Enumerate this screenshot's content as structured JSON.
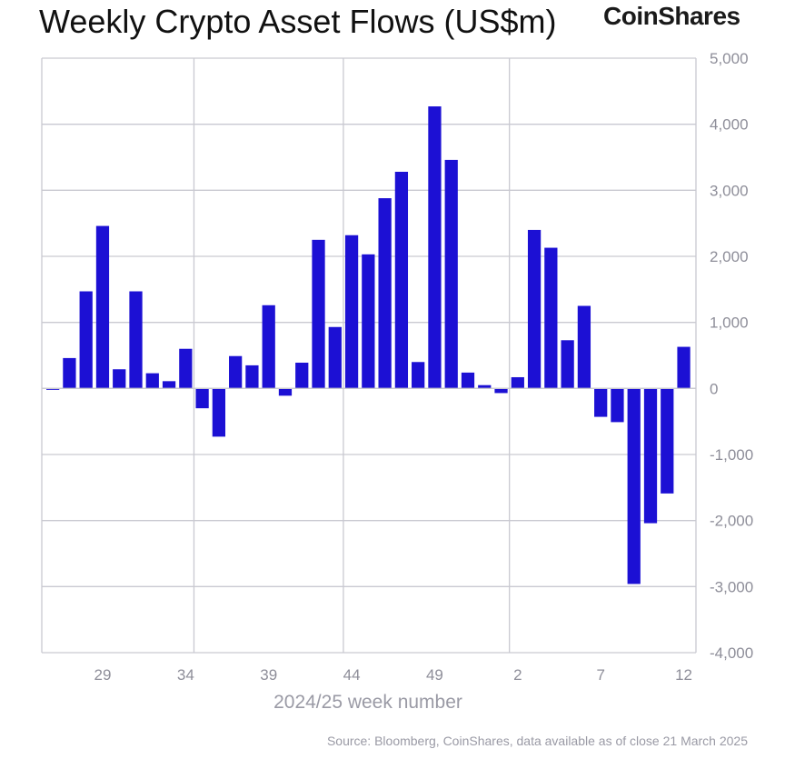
{
  "header": {
    "title": "Weekly Crypto Asset Flows (US$m)",
    "brand": "CoinShares"
  },
  "footer": {
    "source": "Source: Bloomberg, CoinShares, data available as of close 21 March 2025"
  },
  "colors": {
    "bar": "#1c10d4",
    "grid": "#c9c9d1",
    "tick_text": "#8e8e99"
  },
  "chart_data": {
    "type": "bar",
    "title": "Weekly Crypto Asset Flows (US$m)",
    "xlabel": "2024/25 week number",
    "ylabel": "",
    "ylim": [
      -4000,
      5000
    ],
    "y_ticks": [
      5000,
      4000,
      3000,
      2000,
      1000,
      0,
      -1000,
      -2000,
      -3000,
      -4000
    ],
    "y_tick_labels": [
      "5,000",
      "4,000",
      "3,000",
      "2,000",
      "1,000",
      "0",
      "-1,000",
      "-2,000",
      "-3,000",
      "-4,000"
    ],
    "y_axis_side": "right",
    "x_tick_labels": [
      {
        "label": "29",
        "index": 3
      },
      {
        "label": "34",
        "index": 8
      },
      {
        "label": "39",
        "index": 13
      },
      {
        "label": "44",
        "index": 18
      },
      {
        "label": "49",
        "index": 23
      },
      {
        "label": "2",
        "index": 28
      },
      {
        "label": "7",
        "index": 33
      },
      {
        "label": "12",
        "index": 38
      }
    ],
    "vertical_gridline_indices": [
      9,
      18,
      28
    ],
    "grid": true,
    "legend": "none",
    "categories": [
      "26",
      "27",
      "28",
      "29",
      "30",
      "31",
      "32",
      "33",
      "34",
      "35",
      "36",
      "37",
      "38",
      "39",
      "40",
      "41",
      "42",
      "43",
      "44",
      "45",
      "46",
      "47",
      "48",
      "49",
      "50",
      "51",
      "52",
      "1",
      "2",
      "3",
      "4",
      "5",
      "6",
      "7",
      "8",
      "9",
      "10",
      "11",
      "12"
    ],
    "values": [
      -20,
      460,
      1470,
      2460,
      290,
      1470,
      230,
      110,
      600,
      -300,
      -730,
      490,
      350,
      1260,
      -110,
      390,
      2250,
      930,
      2320,
      2030,
      2880,
      3280,
      400,
      4270,
      3460,
      240,
      50,
      -70,
      170,
      2400,
      2130,
      730,
      1250,
      -430,
      -510,
      -2960,
      -2040,
      -1590,
      630
    ]
  }
}
